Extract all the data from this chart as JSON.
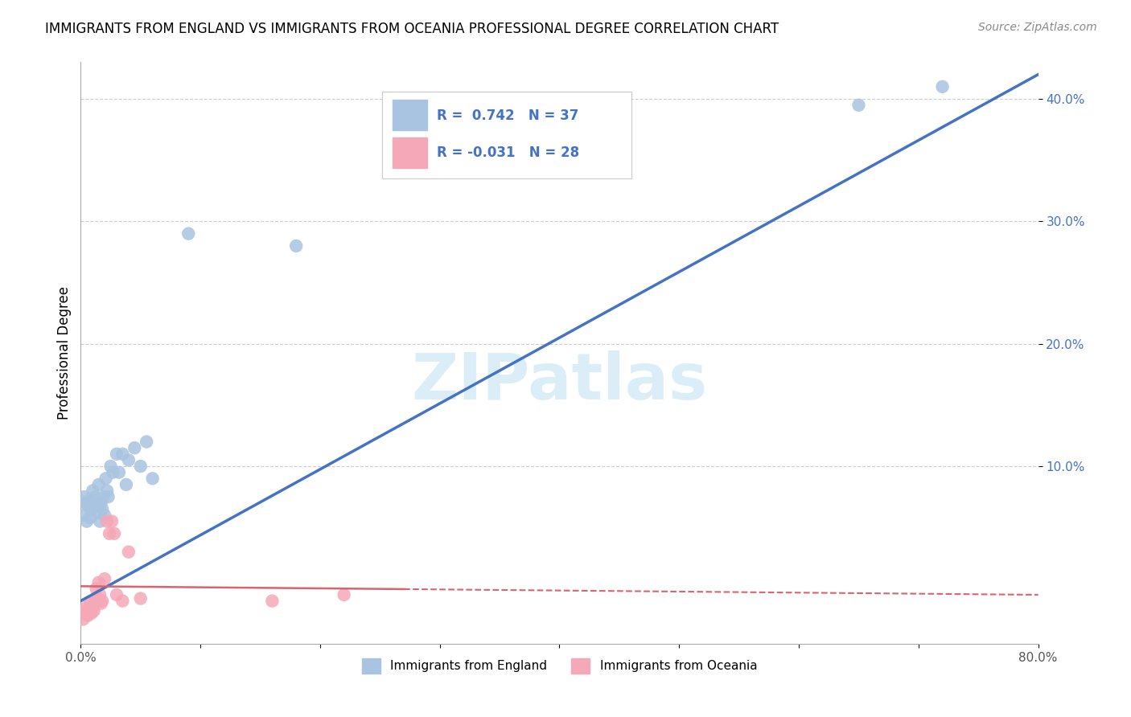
{
  "title": "IMMIGRANTS FROM ENGLAND VS IMMIGRANTS FROM OCEANIA PROFESSIONAL DEGREE CORRELATION CHART",
  "source": "Source: ZipAtlas.com",
  "ylabel": "Professional Degree",
  "xlim": [
    0,
    0.8
  ],
  "ylim": [
    -0.045,
    0.43
  ],
  "xtick_labels": [
    "0.0%",
    "",
    "",
    "",
    "",
    "",
    "",
    "",
    "80.0%"
  ],
  "xtick_vals": [
    0.0,
    0.1,
    0.2,
    0.3,
    0.4,
    0.5,
    0.6,
    0.7,
    0.8
  ],
  "ytick_labels": [
    "10.0%",
    "20.0%",
    "30.0%",
    "40.0%"
  ],
  "ytick_vals": [
    0.1,
    0.2,
    0.3,
    0.4
  ],
  "england_color": "#a8c4e0",
  "oceania_color": "#f4a8b8",
  "england_line_color": "#4472c4",
  "oceania_line_color": "#d9636e",
  "R_england": 0.742,
  "N_england": 37,
  "R_oceania": -0.031,
  "N_oceania": 28,
  "watermark_zip": "ZIP",
  "watermark_atlas": "atlas",
  "england_x": [
    0.002,
    0.003,
    0.004,
    0.005,
    0.006,
    0.007,
    0.008,
    0.009,
    0.01,
    0.011,
    0.012,
    0.013,
    0.014,
    0.015,
    0.016,
    0.017,
    0.018,
    0.019,
    0.02,
    0.021,
    0.022,
    0.023,
    0.025,
    0.027,
    0.03,
    0.032,
    0.035,
    0.038,
    0.04,
    0.045,
    0.05,
    0.055,
    0.06,
    0.09,
    0.18,
    0.65,
    0.72
  ],
  "england_y": [
    0.06,
    0.075,
    0.07,
    0.055,
    0.068,
    0.072,
    0.058,
    0.065,
    0.08,
    0.07,
    0.075,
    0.068,
    0.062,
    0.085,
    0.055,
    0.07,
    0.065,
    0.075,
    0.06,
    0.09,
    0.08,
    0.075,
    0.1,
    0.095,
    0.11,
    0.095,
    0.11,
    0.085,
    0.105,
    0.115,
    0.1,
    0.12,
    0.09,
    0.29,
    0.28,
    0.395,
    0.41
  ],
  "oceania_x": [
    0.002,
    0.003,
    0.004,
    0.005,
    0.006,
    0.007,
    0.008,
    0.009,
    0.01,
    0.011,
    0.012,
    0.013,
    0.014,
    0.015,
    0.016,
    0.017,
    0.018,
    0.02,
    0.022,
    0.024,
    0.026,
    0.028,
    0.03,
    0.035,
    0.04,
    0.05,
    0.16,
    0.22
  ],
  "oceania_y": [
    -0.025,
    -0.02,
    -0.018,
    -0.015,
    -0.022,
    -0.018,
    -0.012,
    -0.02,
    -0.015,
    -0.018,
    -0.01,
    0.0,
    -0.008,
    0.005,
    -0.005,
    -0.012,
    -0.01,
    0.008,
    0.055,
    0.045,
    0.055,
    0.045,
    -0.005,
    -0.01,
    0.03,
    -0.008,
    -0.01,
    -0.005
  ],
  "trend_eng_x0": 0.0,
  "trend_eng_x1": 0.8,
  "trend_oce_x0": 0.0,
  "trend_oce_x1": 0.8,
  "trend_eng_y0": -0.01,
  "trend_eng_y1": 0.42,
  "trend_oce_y0": 0.002,
  "trend_oce_y1": -0.005
}
